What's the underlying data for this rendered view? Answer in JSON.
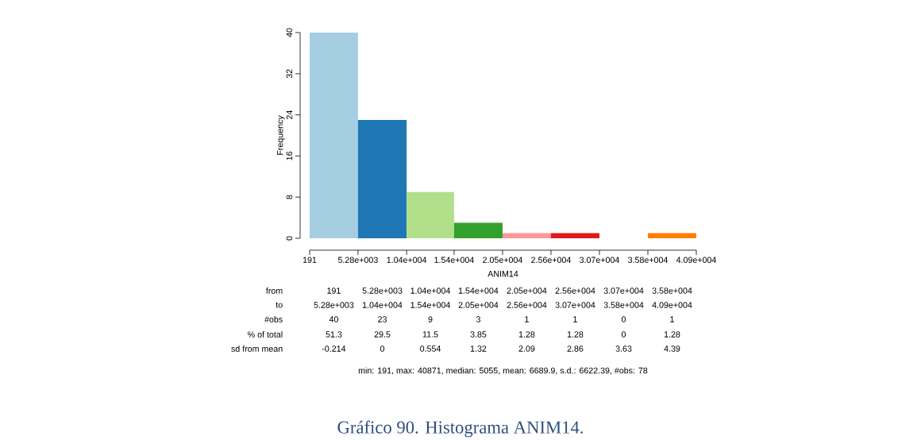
{
  "chart_data": {
    "type": "histogram",
    "xlabel": "ANIM14",
    "ylabel": "Frequency",
    "bins": [
      191,
      5280,
      10400,
      15400,
      20500,
      25600,
      30700,
      35800,
      40900
    ],
    "values": [
      40,
      23,
      9,
      3,
      1,
      1,
      0,
      1
    ],
    "colors": [
      "#a6cee3",
      "#1f78b4",
      "#b2df8a",
      "#33a02c",
      "#fb9a99",
      "#e31a1c",
      "#fdbf6f",
      "#ff7f00"
    ],
    "xlim": [
      191,
      40900
    ],
    "ylim": [
      0,
      40
    ],
    "xticks": [
      {
        "value": 191,
        "label": "191"
      },
      {
        "value": 5280,
        "label": "5.28e+003"
      },
      {
        "value": 10400,
        "label": "1.04e+004"
      },
      {
        "value": 15400,
        "label": "1.54e+004"
      },
      {
        "value": 20500,
        "label": "2.05e+004"
      },
      {
        "value": 25600,
        "label": "2.56e+004"
      },
      {
        "value": 30700,
        "label": "3.07e+004"
      },
      {
        "value": 35800,
        "label": "3.58e+004"
      },
      {
        "value": 40900,
        "label": "4.09e+004"
      }
    ],
    "yticks": [
      0,
      8,
      16,
      24,
      32,
      40
    ],
    "grid": false,
    "annotations": [
      "from",
      "to",
      "#obs",
      "% of total",
      "sd from mean",
      "40",
      "23",
      "9",
      "3",
      "1",
      "1",
      "0",
      "1",
      "51.3",
      "29.5",
      "11.5",
      "3.85",
      "1.28",
      "1.28",
      "0",
      "1.28",
      "-0.214",
      "0",
      "0.554",
      "1.32",
      "2.09",
      "2.86",
      "3.63",
      "4.39",
      "min: 191, max: 40871, median: 5055, mean: 6689.9, s.d.: 6622.39, #obs: 78",
      "Gráfico 90. Histograma ANIM14."
    ]
  }
}
